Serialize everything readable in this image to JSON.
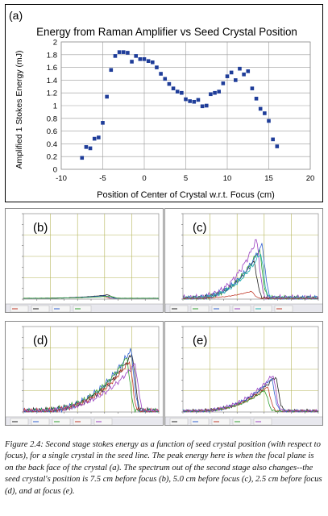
{
  "main_chart": {
    "panel_label": "(a)",
    "title": "Energy from Raman Amplifier vs Seed Crystal Position",
    "xlabel": "Position of Center of Crystal w.r.t. Focus (cm)",
    "ylabel": "Amplified 1 Stokes Energy (mJ)",
    "x_ticks": [
      "-10",
      "-5",
      "0",
      "5",
      "10",
      "15",
      "20"
    ],
    "y_ticks": [
      "0",
      "0.2",
      "0.4",
      "0.6",
      "0.8",
      "1",
      "1.2",
      "1.4",
      "1.6",
      "1.8",
      "2"
    ],
    "colors": {
      "marker": "#1f3d99",
      "grid": "#9a9a9a"
    }
  },
  "chart_data": [
    {
      "type": "scatter",
      "title": "Energy from Raman Amplifier vs Seed Crystal Position",
      "xlabel": "Position of Center of Crystal w.r.t. Focus (cm)",
      "ylabel": "Amplified 1 Stokes Energy (mJ)",
      "xlim": [
        -10,
        20
      ],
      "ylim": [
        0,
        2
      ],
      "grid": true,
      "series": [
        {
          "x": [
            -7.5,
            -7,
            -6.5,
            -6,
            -5.5,
            -5,
            -4.5,
            -4,
            -3.5,
            -3,
            -2.5,
            -2,
            -1.5,
            -1,
            -0.5,
            0,
            0.5,
            1,
            1.5,
            2,
            2.5,
            3,
            3.5,
            4,
            4.5,
            5,
            5.5,
            6,
            6.5,
            7,
            7.5,
            8,
            8.5,
            9,
            9.5,
            10,
            10.5,
            11,
            11.5,
            12,
            12.5,
            13,
            13.5,
            14,
            14.5,
            15,
            15.5,
            16
          ],
          "y": [
            0.18,
            0.35,
            0.33,
            0.48,
            0.5,
            0.73,
            1.14,
            1.56,
            1.78,
            1.84,
            1.84,
            1.83,
            1.69,
            1.78,
            1.73,
            1.73,
            1.7,
            1.68,
            1.6,
            1.5,
            1.42,
            1.34,
            1.27,
            1.22,
            1.2,
            1.1,
            1.07,
            1.06,
            1.09,
            0.99,
            1.0,
            1.18,
            1.2,
            1.22,
            1.35,
            1.46,
            1.52,
            1.4,
            1.58,
            1.49,
            1.54,
            1.27,
            1.11,
            0.95,
            0.88,
            0.76,
            0.47,
            0.36
          ]
        }
      ]
    },
    {
      "panel_label": "(b)",
      "type": "line",
      "series": [
        {
          "color": "#c03a2a",
          "peak_frac": 0.58,
          "height": 0.03
        },
        {
          "color": "#222222",
          "peak_frac": 0.62,
          "height": 0.04
        },
        {
          "color": "#3060d0",
          "peak_frac": 0.6,
          "height": 0.03
        },
        {
          "color": "#30a030",
          "peak_frac": 0.64,
          "height": 0.025
        }
      ]
    },
    {
      "panel_label": "(c)",
      "type": "line",
      "series": [
        {
          "color": "#222222",
          "peak_frac": 0.52,
          "height": 0.43
        },
        {
          "color": "#30a030",
          "peak_frac": 0.56,
          "height": 0.56
        },
        {
          "color": "#3060d0",
          "peak_frac": 0.58,
          "height": 0.62
        },
        {
          "color": "#9a40c0",
          "peak_frac": 0.54,
          "height": 0.68
        },
        {
          "color": "#20b0b0",
          "peak_frac": 0.57,
          "height": 0.52
        },
        {
          "color": "#c03a2a",
          "peak_frac": 0.5,
          "height": 0.08
        }
      ]
    },
    {
      "panel_label": "(d)",
      "type": "line",
      "series": [
        {
          "color": "#222222",
          "peak_frac": 0.8,
          "height": 0.66
        },
        {
          "color": "#3060d0",
          "peak_frac": 0.79,
          "height": 0.71
        },
        {
          "color": "#30a030",
          "peak_frac": 0.76,
          "height": 0.62
        },
        {
          "color": "#c03a2a",
          "peak_frac": 0.78,
          "height": 0.58
        },
        {
          "color": "#9a40c0",
          "peak_frac": 0.82,
          "height": 0.55
        }
      ]
    },
    {
      "panel_label": "(e)",
      "type": "line",
      "series": [
        {
          "color": "#222222",
          "peak_frac": 0.68,
          "height": 0.4
        },
        {
          "color": "#3060d0",
          "peak_frac": 0.65,
          "height": 0.38
        },
        {
          "color": "#c03a2a",
          "peak_frac": 0.62,
          "height": 0.28
        },
        {
          "color": "#30a030",
          "peak_frac": 0.6,
          "height": 0.24
        },
        {
          "color": "#9a40c0",
          "peak_frac": 0.66,
          "height": 0.42
        }
      ]
    }
  ],
  "caption": "Figure 2.4: Second stage stokes energy as a function of seed crystal position (with respect to focus), for a single crystal in the seed line. The peak energy here is when the focal plane is on the back face of the crystal (a). The spectrum out of the second stage also changes--the seed crystal's position is 7.5 cm before focus (b), 5.0 cm before focus (c), 2.5 cm before focus (d), and at focus (e)."
}
